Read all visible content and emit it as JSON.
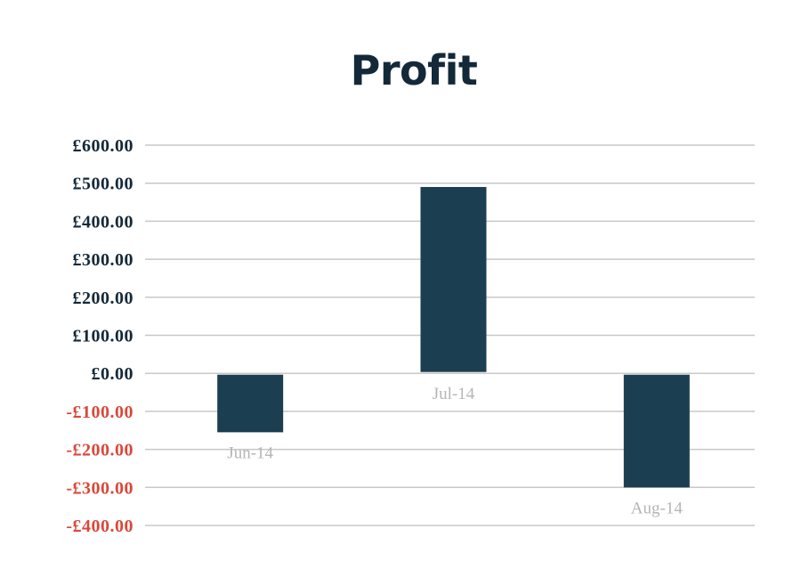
{
  "chart_data": {
    "type": "bar",
    "title": "Profit",
    "categories": [
      "Jun-14",
      "Jul-14",
      "Aug-14"
    ],
    "values": [
      -155,
      490,
      -300
    ],
    "ylim": [
      -400,
      600
    ],
    "yticks": [
      600,
      500,
      400,
      300,
      200,
      100,
      0,
      -100,
      -200,
      -300,
      -400
    ],
    "ytick_labels": [
      "£600.00",
      "£500.00",
      "£400.00",
      "£300.00",
      "£200.00",
      "£100.00",
      "£0.00",
      "-£100.00",
      "-£200.00",
      "-£300.00",
      "-£400.00"
    ],
    "grid": true,
    "xlabel": "",
    "ylabel": ""
  },
  "colors": {
    "bar": "#1c3e51",
    "title": "#13293a",
    "positive_tick": "#13293a",
    "negative_tick": "#d9483b",
    "category_label": "#b5b5b5",
    "grid": "#c8c8c8"
  }
}
